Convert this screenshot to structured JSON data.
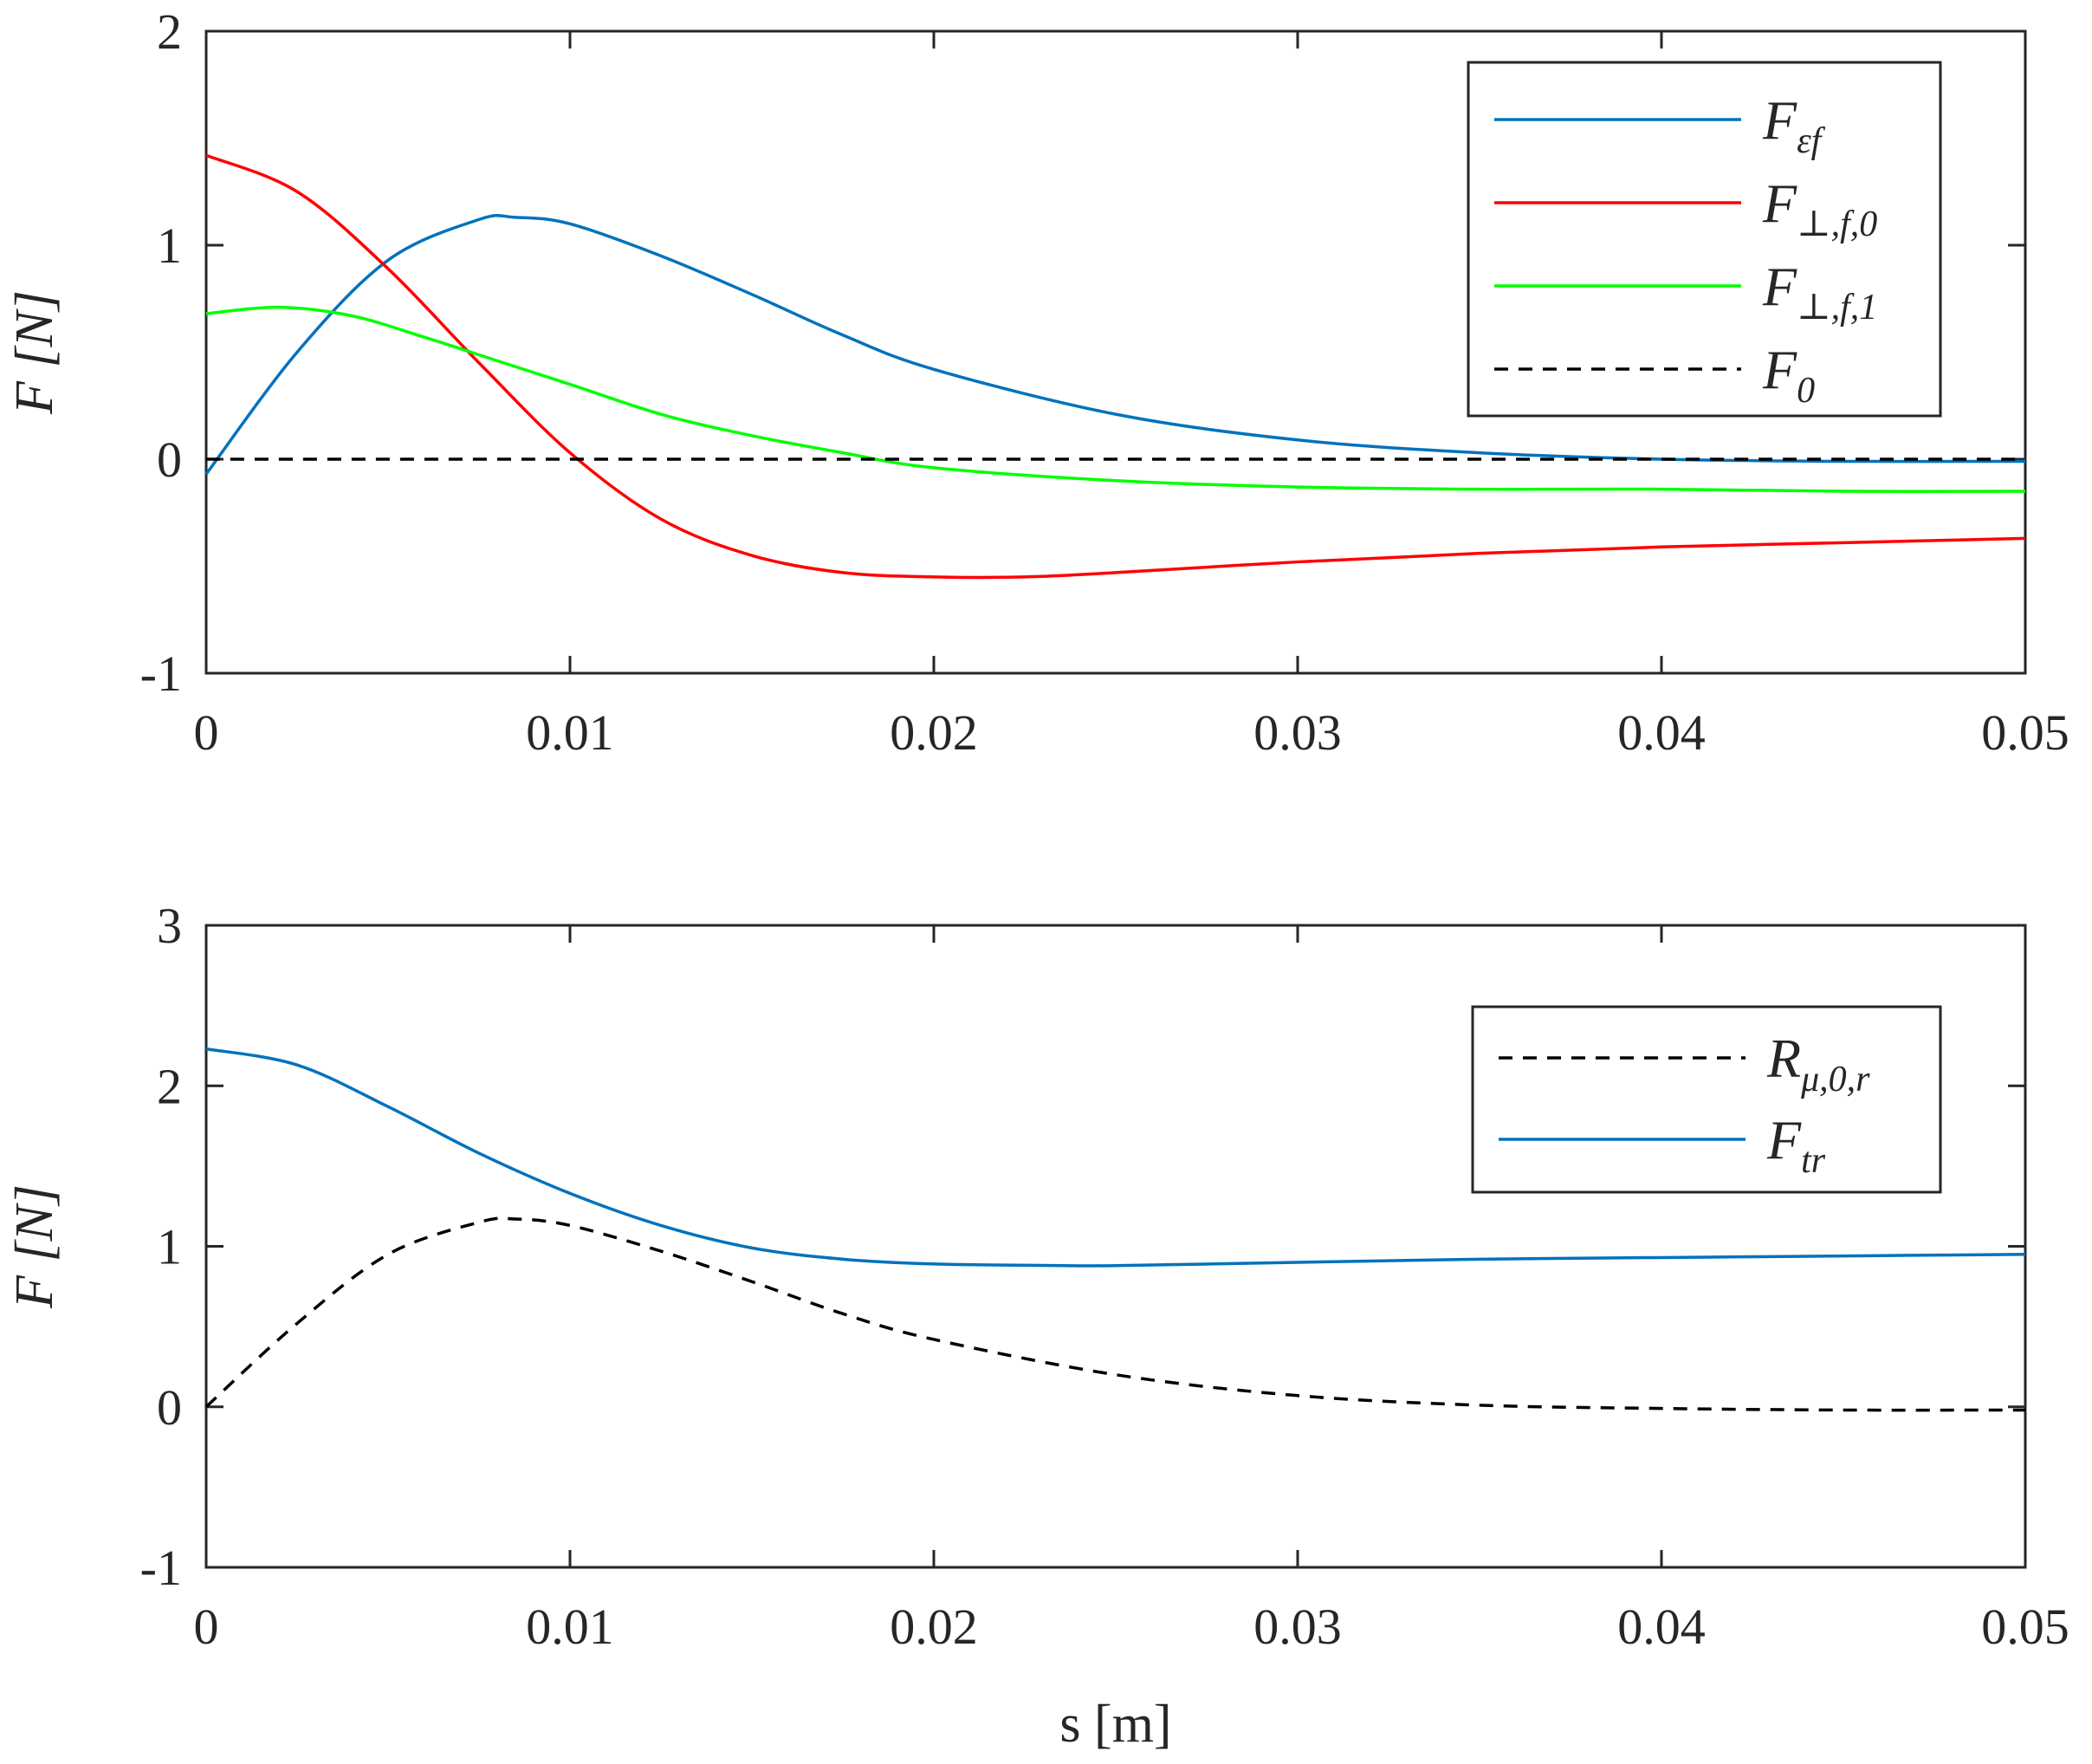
{
  "chart_data": [
    {
      "type": "line",
      "title": "",
      "xlabel": "",
      "ylabel": "F [N]",
      "xlim": [
        0,
        0.05
      ],
      "ylim": [
        -1,
        2
      ],
      "xticks": [
        0,
        0.01,
        0.02,
        0.03,
        0.04,
        0.05
      ],
      "xtick_labels": [
        "0",
        "0.01",
        "0.02",
        "0.03",
        "0.04",
        "0.05"
      ],
      "yticks": [
        -1,
        0,
        1,
        2
      ],
      "ytick_labels": [
        "-1",
        "0",
        "1",
        "2"
      ],
      "legend_position": "top-right",
      "series": [
        {
          "name": "F_εf",
          "legend_main": "F",
          "legend_sub": "εf",
          "color": "#0072bd",
          "dash": "solid",
          "x": [
            0,
            0.0025,
            0.005,
            0.0075,
            0.0085,
            0.01,
            0.0125,
            0.015,
            0.0175,
            0.02,
            0.025,
            0.03,
            0.035,
            0.04,
            0.045,
            0.05
          ],
          "y": [
            -0.07,
            0.5,
            0.93,
            1.12,
            1.13,
            1.1,
            0.95,
            0.77,
            0.58,
            0.42,
            0.21,
            0.09,
            0.03,
            0.0,
            -0.01,
            -0.01
          ]
        },
        {
          "name": "F_⊥,f,0",
          "legend_main": "F",
          "legend_sub": "⊥,f,0",
          "color": "#ff0000",
          "dash": "solid",
          "x": [
            0,
            0.0025,
            0.005,
            0.0075,
            0.01,
            0.0125,
            0.015,
            0.0175,
            0.02,
            0.0225,
            0.025,
            0.03,
            0.035,
            0.04,
            0.045,
            0.05
          ],
          "y": [
            1.42,
            1.25,
            0.89,
            0.45,
            0.03,
            -0.28,
            -0.45,
            -0.53,
            -0.55,
            -0.55,
            -0.53,
            -0.48,
            -0.44,
            -0.41,
            -0.39,
            -0.37
          ]
        },
        {
          "name": "F_⊥,f,1",
          "legend_main": "F",
          "legend_sub": "⊥,f,1",
          "color": "#00ff00",
          "dash": "solid",
          "x": [
            0,
            0.002,
            0.004,
            0.006,
            0.008,
            0.01,
            0.0125,
            0.015,
            0.0175,
            0.02,
            0.025,
            0.03,
            0.035,
            0.04,
            0.045,
            0.05
          ],
          "y": [
            0.68,
            0.71,
            0.67,
            0.57,
            0.46,
            0.35,
            0.21,
            0.11,
            0.03,
            -0.04,
            -0.1,
            -0.13,
            -0.14,
            -0.14,
            -0.15,
            -0.15
          ]
        },
        {
          "name": "F_0",
          "legend_main": "F",
          "legend_sub": "0",
          "color": "#000000",
          "dash": "dashed",
          "x": [
            0,
            0.05
          ],
          "y": [
            0,
            0
          ]
        }
      ]
    },
    {
      "type": "line",
      "title": "",
      "xlabel": "s [m]",
      "ylabel": "F [N]",
      "xlim": [
        0,
        0.05
      ],
      "ylim": [
        -1,
        3
      ],
      "xticks": [
        0,
        0.01,
        0.02,
        0.03,
        0.04,
        0.05
      ],
      "xtick_labels": [
        "0",
        "0.01",
        "0.02",
        "0.03",
        "0.04",
        "0.05"
      ],
      "yticks": [
        -1,
        0,
        1,
        2,
        3
      ],
      "ytick_labels": [
        "-1",
        "0",
        "1",
        "2",
        "3"
      ],
      "legend_position": "top-right",
      "series": [
        {
          "name": "R_μ,0,r",
          "legend_main": "R",
          "legend_sub": "μ,0,r",
          "color": "#000000",
          "dash": "dashed",
          "x": [
            0,
            0.0025,
            0.005,
            0.0075,
            0.0085,
            0.01,
            0.0125,
            0.015,
            0.0175,
            0.02,
            0.025,
            0.03,
            0.035,
            0.04,
            0.045,
            0.05
          ],
          "y": [
            0.0,
            0.52,
            0.95,
            1.15,
            1.17,
            1.13,
            0.97,
            0.78,
            0.58,
            0.42,
            0.2,
            0.07,
            0.01,
            -0.01,
            -0.02,
            -0.02
          ]
        },
        {
          "name": "F_tr",
          "legend_main": "F",
          "legend_sub": "tr",
          "color": "#0072bd",
          "dash": "solid",
          "x": [
            0,
            0.0025,
            0.005,
            0.0075,
            0.01,
            0.0125,
            0.015,
            0.0175,
            0.02,
            0.0235,
            0.025,
            0.03,
            0.035,
            0.04,
            0.045,
            0.05
          ],
          "y": [
            2.23,
            2.13,
            1.87,
            1.58,
            1.33,
            1.13,
            0.99,
            0.92,
            0.89,
            0.88,
            0.88,
            0.9,
            0.92,
            0.93,
            0.94,
            0.95
          ]
        }
      ]
    }
  ]
}
